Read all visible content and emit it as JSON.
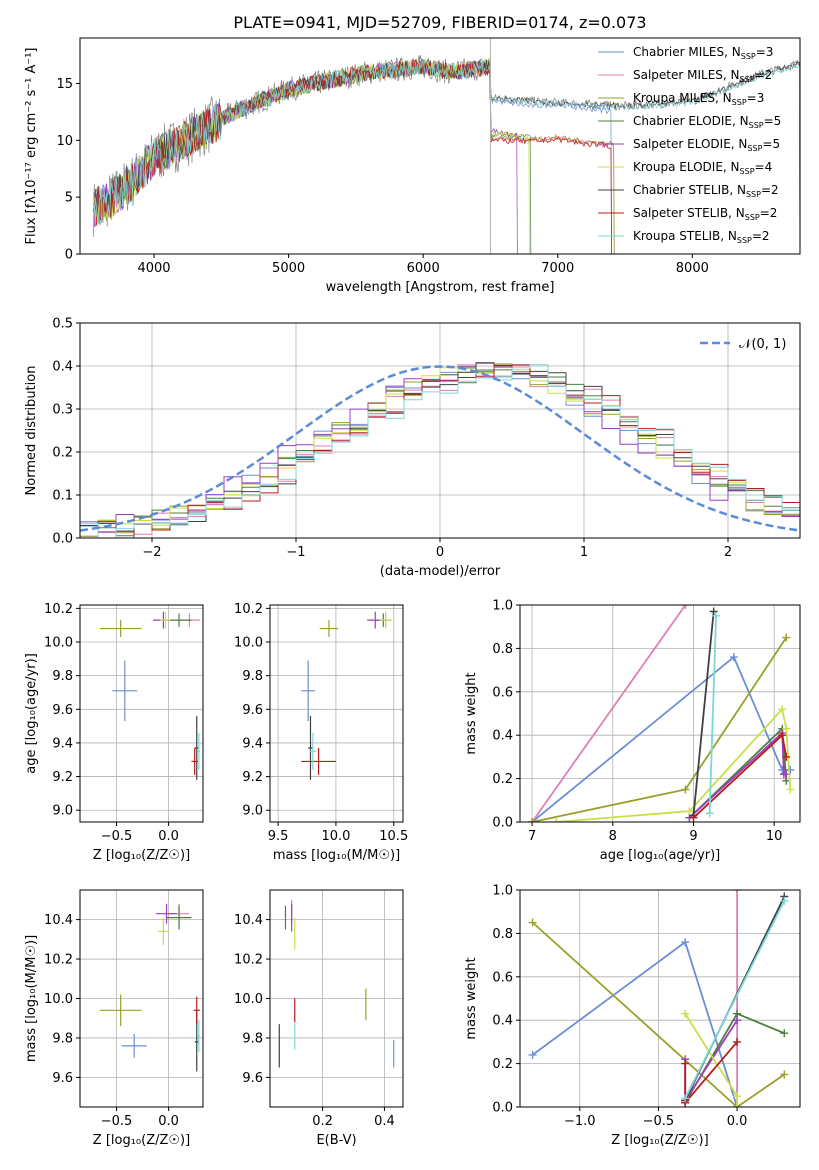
{
  "figure": {
    "title": "PLATE=0941, MJD=52709, FIBERID=0174, z=0.073",
    "colors": [
      "#6a8fd6",
      "#e07fb3",
      "#9a9f2a",
      "#4f7f3f",
      "#9b3fc0",
      "#c8df4a",
      "#404040",
      "#b81b1b",
      "#7fd6d6"
    ]
  },
  "chart_data": [
    {
      "id": "spectrum",
      "type": "line",
      "xlabel": "wavelength [Angstrom, rest frame]",
      "ylabel": "Flux [fλ10⁻¹⁷ erg cm⁻² s⁻¹ A⁻¹]",
      "xlim": [
        3450,
        8800
      ],
      "ylim": [
        0,
        19
      ],
      "xticks": [
        4000,
        5000,
        6000,
        7000,
        8000
      ],
      "yticks": [
        0,
        5,
        10,
        15
      ],
      "grid": false,
      "legend": "top-right",
      "data_envelope": {
        "x": [
          3550,
          3700,
          3850,
          4000,
          4150,
          4300,
          4450,
          4600,
          4800,
          5000,
          5200,
          5400,
          5600,
          5800,
          6000,
          6200,
          6400,
          6500
        ],
        "y": [
          4.0,
          5.0,
          6.5,
          8.5,
          9.5,
          10.5,
          11.5,
          12.5,
          13.5,
          14.5,
          15.0,
          15.5,
          16.0,
          16.2,
          16.5,
          16.0,
          16.3,
          16.5
        ]
      },
      "series": [
        {
          "name": "Chabrier MILES, N_SSP=3",
          "x": [
            6520,
            6800,
            7000,
            7200,
            7400
          ],
          "y": [
            13.5,
            13.0,
            13.2,
            12.8,
            12.6
          ]
        },
        {
          "name": "Salpeter MILES, N_SSP=2",
          "x": [
            6520,
            6800,
            7000,
            7200,
            7420
          ],
          "y": [
            10.2,
            10.0,
            10.3,
            9.8,
            9.6
          ]
        },
        {
          "name": "Kroupa MILES, N_SSP=3",
          "x": [
            6520,
            6800,
            7000,
            7200,
            7420
          ],
          "y": [
            10.3,
            10.1,
            10.2,
            9.9,
            9.7
          ]
        },
        {
          "name": "Chabrier ELODIE, N_SSP=5",
          "x": [
            6520,
            6700,
            6800
          ],
          "y": [
            10.5,
            10.4,
            10.2
          ]
        },
        {
          "name": "Salpeter ELODIE, N_SSP=5",
          "x": [
            6520,
            6600,
            6700
          ],
          "y": [
            10.8,
            10.6,
            10.4
          ]
        },
        {
          "name": "Kroupa ELODIE, N_SSP=4",
          "x": [
            6520,
            6700,
            6790
          ],
          "y": [
            10.6,
            10.4,
            10.2
          ]
        },
        {
          "name": "Chabrier STELIB, N_SSP=2",
          "x": [
            6520,
            7000,
            7500,
            8000,
            8500,
            8800
          ],
          "y": [
            13.7,
            13.3,
            13.0,
            13.4,
            15.8,
            16.8
          ]
        },
        {
          "name": "Salpeter STELIB, N_SSP=2",
          "x": [
            6520,
            6800,
            7000,
            7200,
            7400
          ],
          "y": [
            10.0,
            9.9,
            10.1,
            9.7,
            9.5
          ]
        },
        {
          "name": "Kroupa STELIB, N_SSP=2",
          "x": [
            6520,
            7000,
            7500,
            8000,
            8500,
            8800
          ],
          "y": [
            13.6,
            13.2,
            12.9,
            13.3,
            15.6,
            16.6
          ]
        }
      ]
    },
    {
      "id": "residuals",
      "type": "line",
      "xlabel": "(data-model)/error",
      "ylabel": "Normed distribution",
      "xlim": [
        -2.5,
        2.5
      ],
      "ylim": [
        0,
        0.5
      ],
      "xticks": [
        -2,
        -1,
        0,
        1,
        2
      ],
      "yticks": [
        0.0,
        0.1,
        0.2,
        0.3,
        0.4,
        0.5
      ],
      "grid": true,
      "legend": "top-right",
      "reference": {
        "name": "𝒩(0, 1)",
        "mean": 0,
        "sigma": 1
      },
      "hist_bins": 40,
      "hist_shift": [
        0.3,
        0.42,
        0.34,
        0.36,
        0.22,
        0.36,
        0.44,
        0.45,
        0.48
      ]
    },
    {
      "id": "age_vs_Z",
      "type": "scatter",
      "xlabel": "Z [log₁₀(Z/Z☉)]",
      "ylabel": "age  [log₁₀(age/yr)]",
      "xlim": [
        -0.85,
        0.33
      ],
      "ylim": [
        8.93,
        10.22
      ],
      "xticks": [
        -0.5,
        0.0
      ],
      "yticks": [
        9.0,
        9.2,
        9.4,
        9.6,
        9.8,
        10.0,
        10.2
      ],
      "grid": true,
      "points": [
        {
          "x": -0.42,
          "y": 9.71,
          "xerr": 0.12,
          "yerr": 0.18
        },
        {
          "x": 0.2,
          "y": 10.13,
          "xerr": 0.1,
          "yerr": 0.04
        },
        {
          "x": -0.46,
          "y": 10.08,
          "xerr": 0.2,
          "yerr": 0.05
        },
        {
          "x": 0.1,
          "y": 10.13,
          "xerr": 0.12,
          "yerr": 0.04
        },
        {
          "x": -0.05,
          "y": 10.13,
          "xerr": 0.1,
          "yerr": 0.05
        },
        {
          "x": -0.03,
          "y": 10.13,
          "xerr": 0.05,
          "yerr": 0.05
        },
        {
          "x": 0.27,
          "y": 9.37,
          "xerr": 0.02,
          "yerr": 0.19
        },
        {
          "x": 0.25,
          "y": 9.29,
          "xerr": 0.03,
          "yerr": 0.08
        },
        {
          "x": 0.29,
          "y": 9.35,
          "xerr": 0.01,
          "yerr": 0.11
        }
      ]
    },
    {
      "id": "age_vs_mass",
      "type": "scatter",
      "xlabel": "mass [log₁₀(M/M☉)]",
      "ylabel": "",
      "xlim": [
        9.43,
        10.58
      ],
      "ylim": [
        8.93,
        10.22
      ],
      "xticks": [
        9.5,
        10.0,
        10.5
      ],
      "yticks": [
        9.0,
        9.2,
        9.4,
        9.6,
        9.8,
        10.0,
        10.2
      ],
      "grid": true,
      "points": [
        {
          "x": 9.76,
          "y": 9.71,
          "xerr": 0.06,
          "yerr": 0.18
        },
        {
          "x": 10.43,
          "y": 10.13,
          "xerr": 0.05,
          "yerr": 0.04
        },
        {
          "x": 9.94,
          "y": 10.08,
          "xerr": 0.08,
          "yerr": 0.05
        },
        {
          "x": 10.41,
          "y": 10.13,
          "xerr": 0.06,
          "yerr": 0.04
        },
        {
          "x": 10.34,
          "y": 10.13,
          "xerr": 0.07,
          "yerr": 0.05
        },
        {
          "x": 10.43,
          "y": 10.13,
          "xerr": 0.05,
          "yerr": 0.05
        },
        {
          "x": 9.78,
          "y": 9.37,
          "xerr": 0.02,
          "yerr": 0.19
        },
        {
          "x": 9.85,
          "y": 9.29,
          "xerr": 0.15,
          "yerr": 0.08
        },
        {
          "x": 9.8,
          "y": 9.35,
          "xerr": 0.03,
          "yerr": 0.11
        }
      ]
    },
    {
      "id": "weight_vs_age",
      "type": "line",
      "xlabel": "age  [log₁₀(age/yr)]",
      "ylabel": "mass weight",
      "xlim": [
        6.85,
        10.32
      ],
      "ylim": [
        0,
        1.0
      ],
      "xticks": [
        7,
        8,
        9,
        10
      ],
      "yticks": [
        0.0,
        0.2,
        0.4,
        0.6,
        0.8,
        1.0
      ],
      "grid": true,
      "series": [
        {
          "x": [
            7.0,
            9.5,
            10.1,
            10.2
          ],
          "y": [
            0.0,
            0.76,
            0.24,
            0.24
          ]
        },
        {
          "x": [
            7.0,
            8.9
          ],
          "y": [
            0.0,
            1.0
          ]
        },
        {
          "x": [
            7.0,
            8.9,
            10.15
          ],
          "y": [
            0.0,
            0.15,
            0.85
          ]
        },
        {
          "x": [
            8.95,
            10.1,
            10.15
          ],
          "y": [
            0.02,
            0.43,
            0.19
          ]
        },
        {
          "x": [
            8.95,
            10.1,
            10.12,
            10.15
          ],
          "y": [
            0.02,
            0.41,
            0.22,
            0.22
          ]
        },
        {
          "x": [
            7.3,
            8.95,
            10.1,
            10.15,
            10.2
          ],
          "y": [
            0.0,
            0.05,
            0.52,
            0.43,
            0.15
          ]
        },
        {
          "x": [
            9.0,
            9.25
          ],
          "y": [
            0.03,
            0.97
          ]
        },
        {
          "x": [
            9.0,
            10.1,
            10.15
          ],
          "y": [
            0.02,
            0.4,
            0.3
          ]
        },
        {
          "x": [
            9.2,
            9.28
          ],
          "y": [
            0.04,
            0.95
          ]
        }
      ]
    },
    {
      "id": "mass_vs_Z",
      "type": "scatter",
      "xlabel": "Z [log₁₀(Z/Z☉)]",
      "ylabel": "mass [log₁₀(M/M☉)]",
      "xlim": [
        -0.85,
        0.33
      ],
      "ylim": [
        9.45,
        10.55
      ],
      "xticks": [
        -0.5,
        0.0
      ],
      "yticks": [
        9.6,
        9.8,
        10.0,
        10.2,
        10.4
      ],
      "grid": true,
      "points": [
        {
          "x": -0.33,
          "y": 9.76,
          "xerr": 0.12,
          "yerr": 0.06
        },
        {
          "x": 0.1,
          "y": 10.43,
          "xerr": 0.1,
          "yerr": 0.05
        },
        {
          "x": -0.46,
          "y": 9.94,
          "xerr": 0.2,
          "yerr": 0.08
        },
        {
          "x": 0.1,
          "y": 10.41,
          "xerr": 0.12,
          "yerr": 0.06
        },
        {
          "x": -0.02,
          "y": 10.43,
          "xerr": 0.1,
          "yerr": 0.05
        },
        {
          "x": -0.05,
          "y": 10.34,
          "xerr": 0.05,
          "yerr": 0.07
        },
        {
          "x": 0.27,
          "y": 9.78,
          "xerr": 0.02,
          "yerr": 0.15
        },
        {
          "x": 0.27,
          "y": 9.94,
          "xerr": 0.03,
          "yerr": 0.07
        },
        {
          "x": 0.29,
          "y": 9.81,
          "xerr": 0.01,
          "yerr": 0.08
        }
      ]
    },
    {
      "id": "mass_vs_ebv",
      "type": "scatter",
      "xlabel": "E(B-V)",
      "ylabel": "",
      "xlim": [
        0.03,
        0.46
      ],
      "ylim": [
        9.45,
        10.55
      ],
      "xticks": [
        0.2,
        0.4
      ],
      "yticks": [
        9.6,
        9.8,
        10.0,
        10.2,
        10.4
      ],
      "grid": true,
      "points": [
        {
          "x": 0.43,
          "y": 9.72,
          "xerr": 0.0,
          "yerr": 0.07
        },
        {
          "x": 0.1,
          "y": 10.44,
          "xerr": 0.0,
          "yerr": 0.06
        },
        {
          "x": 0.34,
          "y": 9.97,
          "xerr": 0.0,
          "yerr": 0.08
        },
        {
          "x": 0.08,
          "y": 10.41,
          "xerr": 0.0,
          "yerr": 0.06
        },
        {
          "x": 0.1,
          "y": 10.41,
          "xerr": 0.0,
          "yerr": 0.07
        },
        {
          "x": 0.11,
          "y": 10.33,
          "xerr": 0.0,
          "yerr": 0.08
        },
        {
          "x": 0.06,
          "y": 9.76,
          "xerr": 0.0,
          "yerr": 0.11
        },
        {
          "x": 0.11,
          "y": 9.94,
          "xerr": 0.0,
          "yerr": 0.06
        },
        {
          "x": 0.11,
          "y": 9.81,
          "xerr": 0.0,
          "yerr": 0.07
        }
      ]
    },
    {
      "id": "weight_vs_Z",
      "type": "line",
      "xlabel": "Z [log₁₀(Z/Z☉)]",
      "ylabel": "mass weight",
      "xlim": [
        -1.38,
        0.4
      ],
      "ylim": [
        0,
        1.0
      ],
      "xticks": [
        -1.0,
        -0.5,
        0.0
      ],
      "yticks": [
        0.0,
        0.2,
        0.4,
        0.6,
        0.8,
        1.0
      ],
      "grid": true,
      "series": [
        {
          "x": [
            -1.3,
            -0.33,
            0.0
          ],
          "y": [
            0.24,
            0.76,
            0.0
          ]
        },
        {
          "x": [
            0.0,
            0.0
          ],
          "y": [
            0.0,
            1.0
          ]
        },
        {
          "x": [
            -1.3,
            0.0,
            0.3
          ],
          "y": [
            0.85,
            0.0,
            0.15
          ]
        },
        {
          "x": [
            -0.33,
            0.0,
            0.3
          ],
          "y": [
            0.02,
            0.43,
            0.34
          ]
        },
        {
          "x": [
            -0.33,
            -0.33,
            0.0
          ],
          "y": [
            0.22,
            0.03,
            0.4
          ]
        },
        {
          "x": [
            -0.33,
            0.0,
            0.0
          ],
          "y": [
            0.43,
            0.05,
            0.0
          ]
        },
        {
          "x": [
            -0.33,
            0.3
          ],
          "y": [
            0.03,
            0.97
          ]
        },
        {
          "x": [
            -0.33,
            -0.33,
            0.0
          ],
          "y": [
            0.2,
            0.02,
            0.3
          ]
        },
        {
          "x": [
            -0.33,
            0.3
          ],
          "y": [
            0.04,
            0.95
          ]
        }
      ]
    }
  ]
}
